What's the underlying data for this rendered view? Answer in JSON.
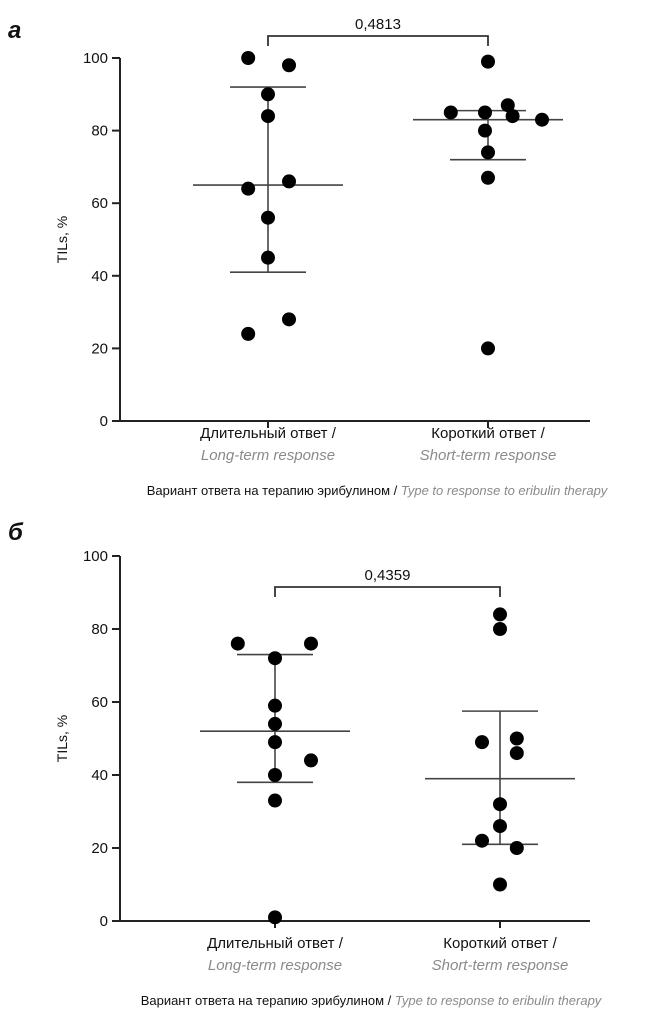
{
  "chart_data": [
    {
      "type": "scatter",
      "panel_label": "a",
      "ylabel": "TILs, %",
      "ylim": [
        0,
        100
      ],
      "yticks": [
        0,
        20,
        40,
        60,
        80,
        100
      ],
      "xlabel_ru": "Вариант ответа на терапию эрибулином /",
      "xlabel_en": "Type to response to eribulin therapy",
      "categories": [
        {
          "ru": "Длительный ответ /",
          "en": "Long-term response"
        },
        {
          "ru": "Короткий ответ /",
          "en": "Short-term response"
        }
      ],
      "p_value": "0,4813",
      "groups": [
        {
          "values": [
            100,
            98,
            90,
            84,
            66,
            64,
            56,
            45,
            28,
            24
          ],
          "x_offsets": [
            -0.33,
            0.35,
            0.0,
            0.0,
            0.35,
            -0.33,
            0.0,
            0.0,
            0.35,
            -0.33
          ],
          "mean": 65,
          "sd_upper": 92,
          "sd_lower": 41
        },
        {
          "values": [
            99,
            87,
            85,
            85,
            84,
            83,
            80,
            74,
            67,
            20
          ],
          "x_offsets": [
            0.0,
            0.33,
            -0.62,
            -0.05,
            0.41,
            0.9,
            -0.05,
            0.0,
            0.0,
            0.0
          ],
          "mean": 83,
          "sd_upper": 85.5,
          "sd_lower": 72
        }
      ]
    },
    {
      "type": "scatter",
      "panel_label": "б",
      "ylabel": "TILs, %",
      "ylim": [
        0,
        100
      ],
      "yticks": [
        0,
        20,
        40,
        60,
        80,
        100
      ],
      "xlabel_ru": "Вариант ответа на терапию эрибулином /",
      "xlabel_en": "Type to response to eribulin therapy",
      "categories": [
        {
          "ru": "Длительный ответ /",
          "en": "Long-term response"
        },
        {
          "ru": "Короткий ответ /",
          "en": "Short-term response"
        }
      ],
      "p_value": "0,4359",
      "groups": [
        {
          "values": [
            76,
            76,
            72,
            59,
            54,
            49,
            44,
            40,
            33,
            1
          ],
          "x_offsets": [
            -0.62,
            0.6,
            0.0,
            0.0,
            0.0,
            0.0,
            0.6,
            0.0,
            0.0,
            0.0
          ],
          "mean": 52,
          "sd_upper": 73,
          "sd_lower": 38
        },
        {
          "values": [
            84,
            80,
            50,
            49,
            46,
            32,
            26,
            22,
            20,
            10
          ],
          "x_offsets": [
            0.0,
            0.0,
            0.28,
            -0.3,
            0.28,
            0.0,
            0.0,
            -0.3,
            0.28,
            0.0
          ],
          "mean": 39,
          "sd_upper": 57.5,
          "sd_lower": 21
        }
      ]
    }
  ]
}
